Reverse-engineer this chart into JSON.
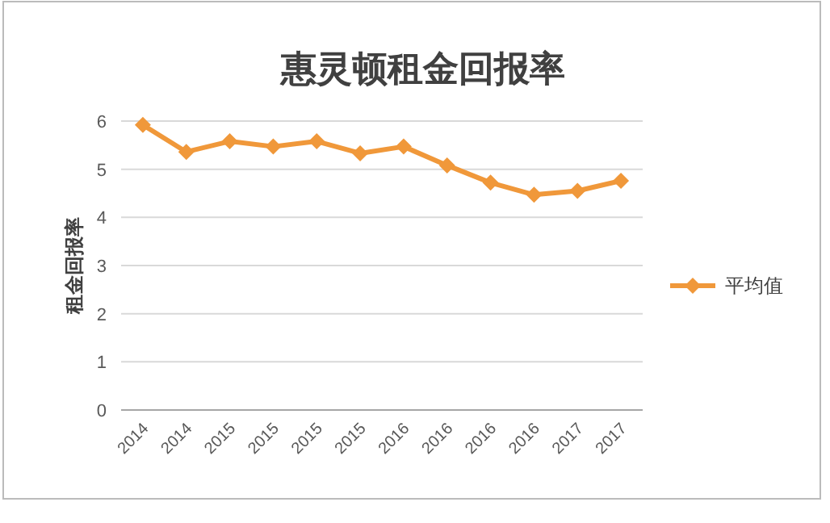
{
  "chart_data": {
    "type": "line",
    "title": "惠灵顿租金回报率",
    "ylabel": "租金回报率",
    "categories": [
      "2014",
      "2014",
      "2015",
      "2015",
      "2015",
      "2015",
      "2016",
      "2016",
      "2016",
      "2016",
      "2017",
      "2017"
    ],
    "series": [
      {
        "name": "平均值",
        "color": "#f0983a",
        "values": [
          5.92,
          5.36,
          5.58,
          5.47,
          5.58,
          5.33,
          5.47,
          5.08,
          4.72,
          4.47,
          4.55,
          4.76
        ]
      }
    ],
    "ylim": [
      0,
      6
    ],
    "yticks": [
      0,
      1,
      2,
      3,
      4,
      5,
      6
    ],
    "grid": "y",
    "legend": "right",
    "marker": "diamond",
    "line_style": "solid"
  }
}
